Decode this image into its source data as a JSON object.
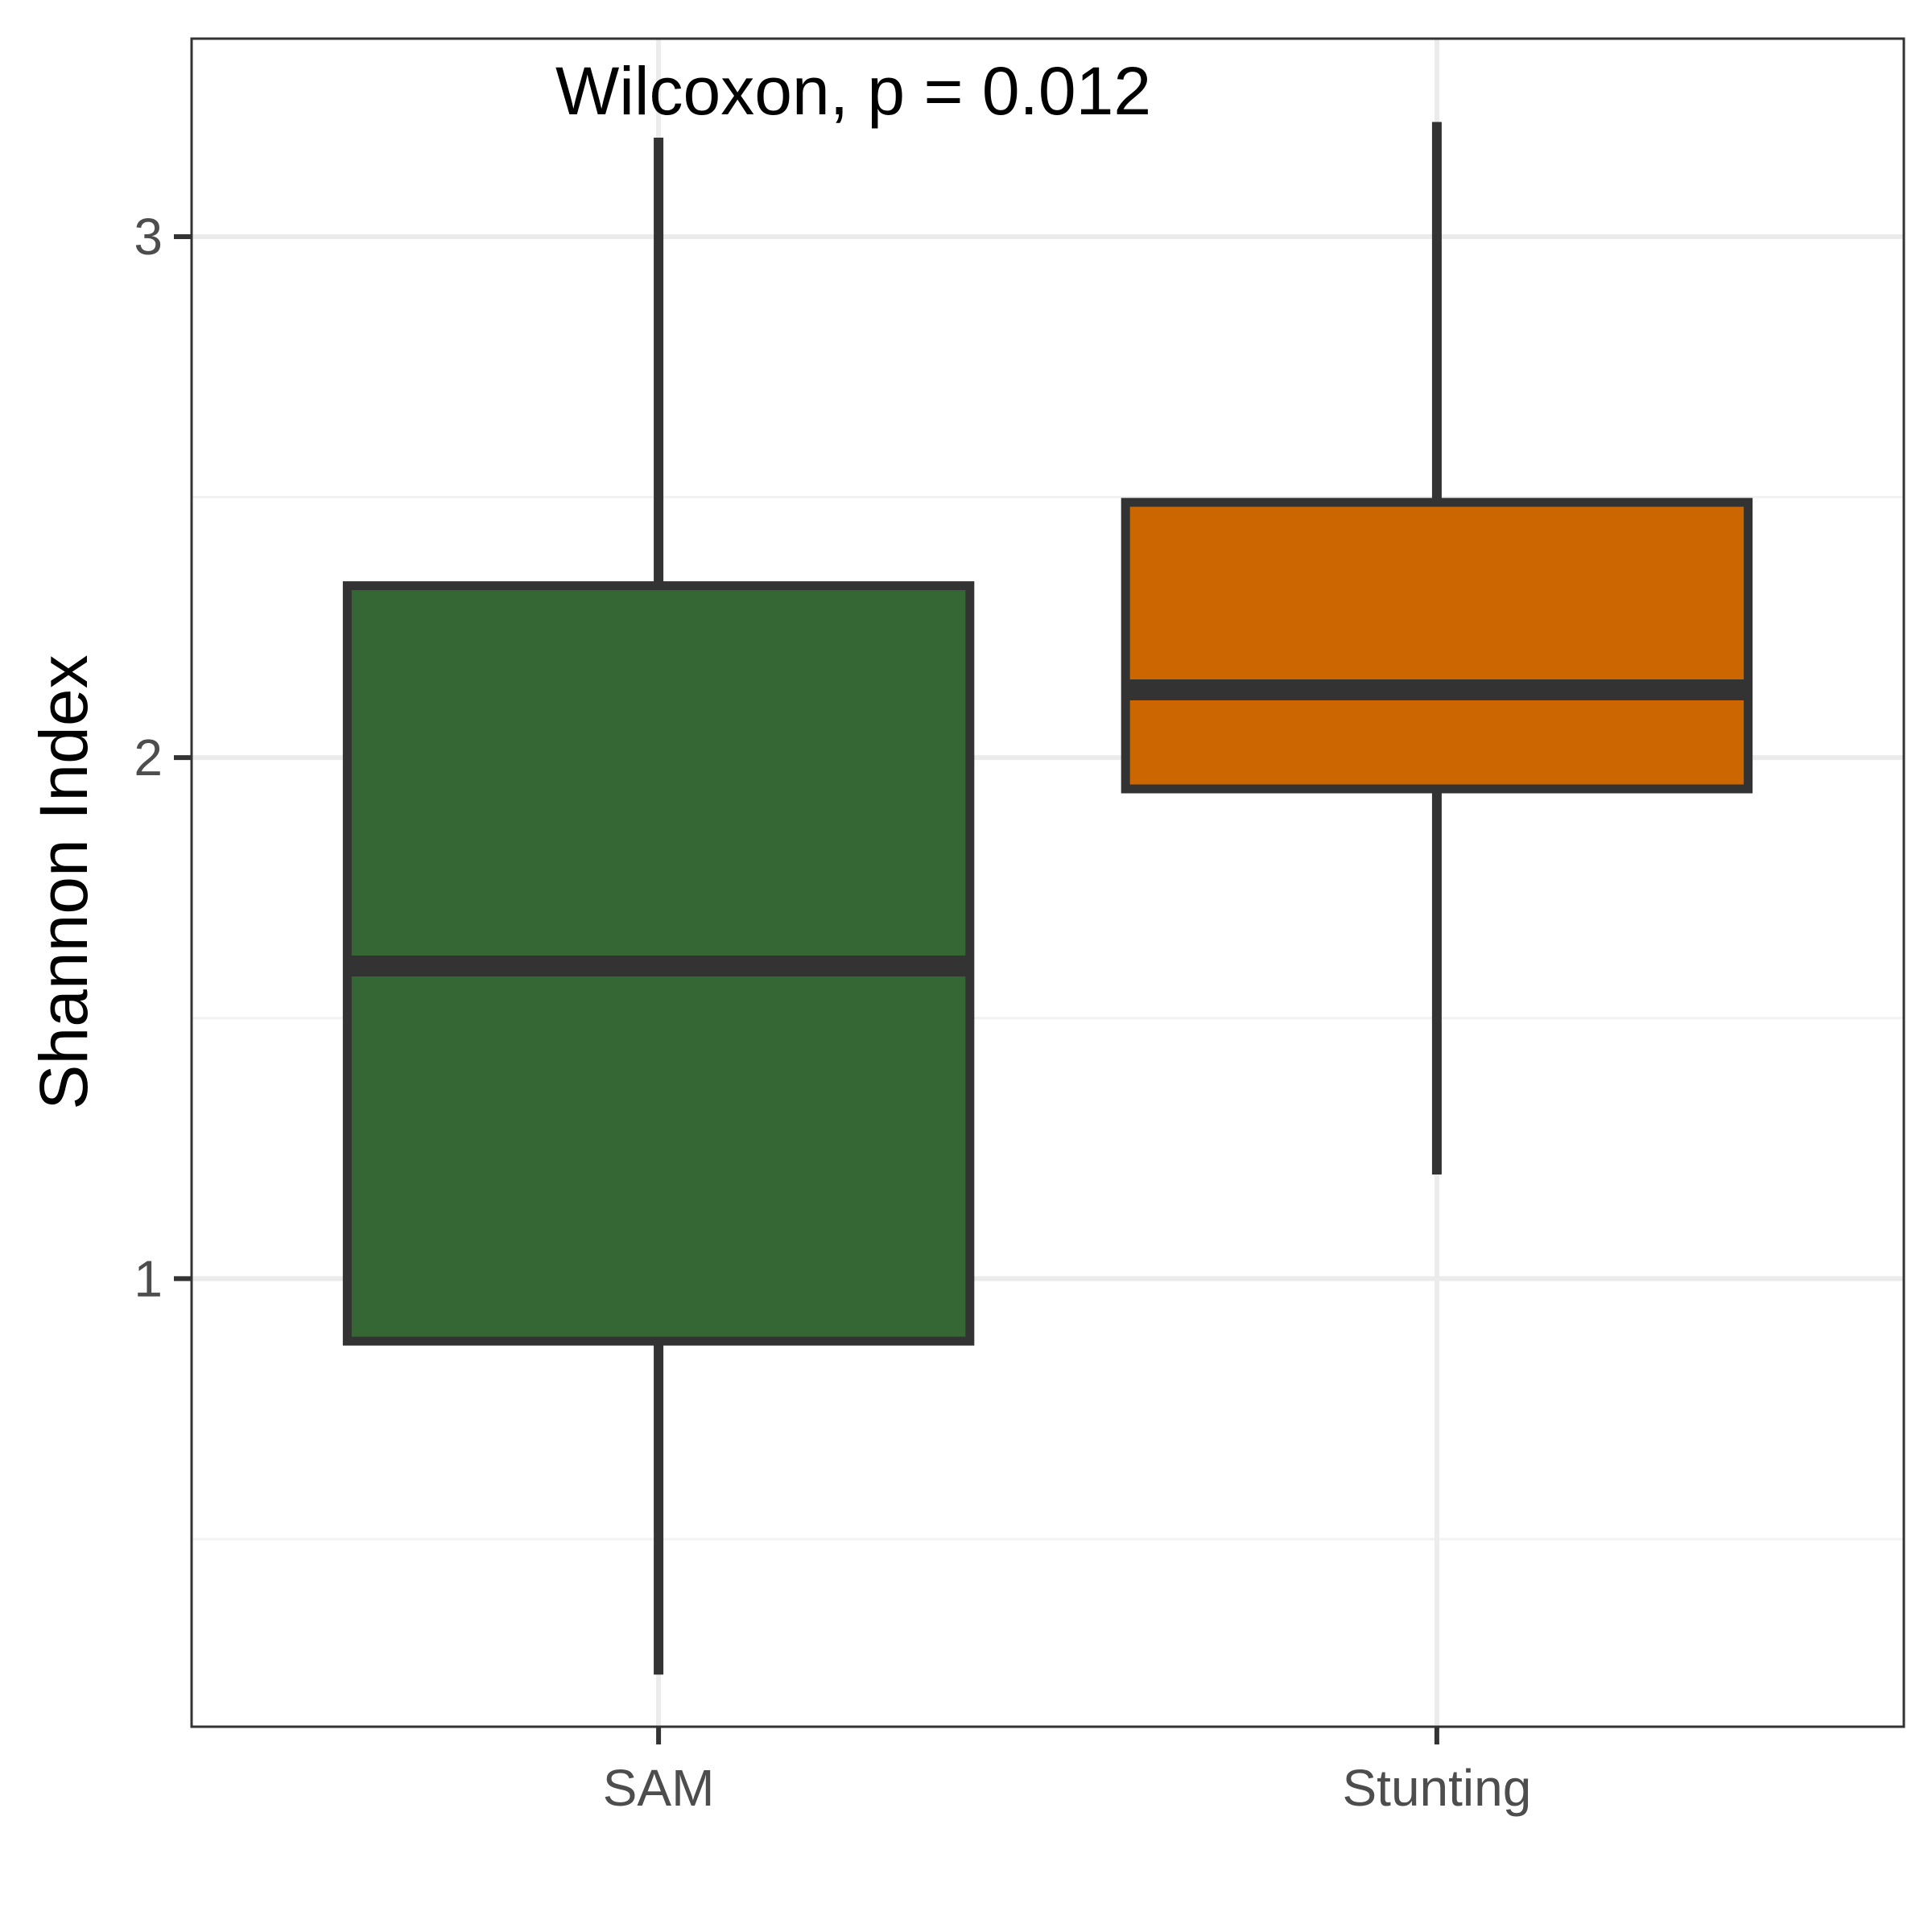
{
  "chart_data": {
    "type": "boxplot",
    "title": "",
    "xlabel": "",
    "ylabel": "Shannon Index",
    "ylim": [
      0.14,
      3.38
    ],
    "y_ticks": [
      1,
      2,
      3
    ],
    "y_minor_ticks": [
      0.5,
      1.5,
      2.5
    ],
    "grid": true,
    "legend": "none",
    "annotation": "Wilcoxon, p = 0.012",
    "categories": [
      "SAM",
      "Stunting"
    ],
    "series": [
      {
        "category": "SAM",
        "color": "#356735",
        "whisker_low": 0.24,
        "q1": 0.88,
        "median": 1.6,
        "q3": 2.33,
        "whisker_high": 3.19
      },
      {
        "category": "Stunting",
        "color": "#cc6600",
        "whisker_low": 1.2,
        "q1": 1.94,
        "median": 2.13,
        "q3": 2.49,
        "whisker_high": 3.22
      }
    ],
    "colors": {
      "outline": "#333333",
      "grid_major": "#ebebeb",
      "grid_minor": "#f2f2f2",
      "panel_border": "#333333"
    }
  }
}
